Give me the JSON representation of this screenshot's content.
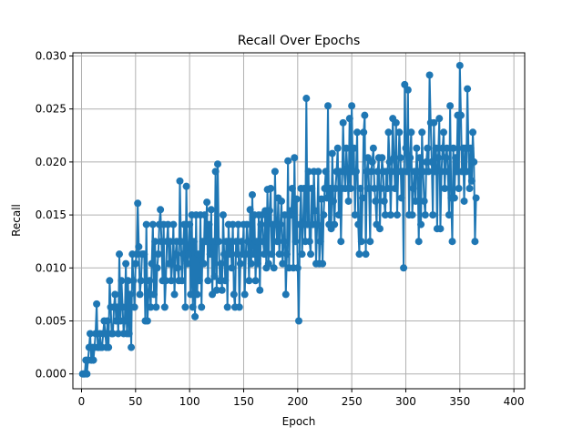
{
  "chart_data": {
    "type": "line",
    "title": "Recall Over Epochs",
    "xlabel": "Epoch",
    "ylabel": "Recall",
    "xlim": [
      -8,
      410
    ],
    "ylim": [
      -0.0014,
      0.0303
    ],
    "xticks": [
      0,
      50,
      100,
      150,
      200,
      250,
      300,
      350,
      400
    ],
    "xtick_labels": [
      "0",
      "50",
      "100",
      "150",
      "200",
      "250",
      "300",
      "350",
      "400"
    ],
    "yticks": [
      0.0,
      0.005,
      0.01,
      0.015,
      0.02,
      0.025,
      0.03
    ],
    "ytick_labels": [
      "0.000",
      "0.005",
      "0.010",
      "0.015",
      "0.020",
      "0.025",
      "0.030"
    ],
    "grid": true,
    "legend": "none",
    "marker": "circle",
    "color": "#1f77b4",
    "series": [
      {
        "x_start": 1,
        "x_step": 1,
        "values": [
          0.0,
          0.0,
          0.0,
          0.0013,
          0.0,
          0.0013,
          0.0025,
          0.0038,
          0.0013,
          0.0025,
          0.0013,
          0.0025,
          0.0038,
          0.0066,
          0.0025,
          0.0025,
          0.0038,
          0.0025,
          0.0025,
          0.0038,
          0.005,
          0.0038,
          0.0025,
          0.005,
          0.0025,
          0.0088,
          0.0063,
          0.0038,
          0.0038,
          0.0063,
          0.0075,
          0.005,
          0.0063,
          0.0038,
          0.0113,
          0.005,
          0.0088,
          0.0063,
          0.0038,
          0.005,
          0.0104,
          0.0038,
          0.0088,
          0.0038,
          0.0075,
          0.0025,
          0.0113,
          0.0088,
          0.0063,
          0.0104,
          0.0113,
          0.0161,
          0.012,
          0.0075,
          0.0088,
          0.0113,
          0.0113,
          0.0113,
          0.005,
          0.0141,
          0.005,
          0.0075,
          0.0088,
          0.0063,
          0.0104,
          0.0141,
          0.0075,
          0.0125,
          0.0063,
          0.01,
          0.0113,
          0.0141,
          0.0155,
          0.0125,
          0.0088,
          0.0141,
          0.0063,
          0.0088,
          0.0125,
          0.0141,
          0.0104,
          0.0125,
          0.0088,
          0.0104,
          0.0141,
          0.0075,
          0.0113,
          0.0125,
          0.01,
          0.0088,
          0.0182,
          0.0125,
          0.0088,
          0.0113,
          0.0141,
          0.0063,
          0.0177,
          0.0104,
          0.0113,
          0.0141,
          0.0075,
          0.015,
          0.0063,
          0.0125,
          0.0054,
          0.015,
          0.0075,
          0.0113,
          0.0088,
          0.015,
          0.0063,
          0.0125,
          0.0104,
          0.015,
          0.0125,
          0.0162,
          0.0088,
          0.0141,
          0.0113,
          0.0155,
          0.0075,
          0.0125,
          0.0092,
          0.0191,
          0.0079,
          0.0198,
          0.0125,
          0.0088,
          0.0104,
          0.0079,
          0.015,
          0.0113,
          0.0088,
          0.0125,
          0.0063,
          0.0141,
          0.0113,
          0.0125,
          0.01,
          0.0141,
          0.0075,
          0.0063,
          0.0125,
          0.0113,
          0.0141,
          0.0063,
          0.0104,
          0.0125,
          0.0113,
          0.0141,
          0.0075,
          0.0113,
          0.0141,
          0.0125,
          0.0088,
          0.0155,
          0.0104,
          0.0169,
          0.0113,
          0.015,
          0.0088,
          0.0125,
          0.0104,
          0.015,
          0.0079,
          0.0141,
          0.015,
          0.0125,
          0.0113,
          0.0154,
          0.01,
          0.0174,
          0.0104,
          0.0154,
          0.0175,
          0.0113,
          0.0141,
          0.01,
          0.0191,
          0.0141,
          0.0125,
          0.0166,
          0.0113,
          0.0141,
          0.0163,
          0.0104,
          0.0125,
          0.015,
          0.0075,
          0.0113,
          0.0201,
          0.01,
          0.0154,
          0.015,
          0.0175,
          0.01,
          0.0204,
          0.0125,
          0.0165,
          0.01,
          0.005,
          0.0141,
          0.0175,
          0.0113,
          0.0141,
          0.0175,
          0.0125,
          0.026,
          0.0141,
          0.0191,
          0.0125,
          0.0113,
          0.0175,
          0.0141,
          0.0191,
          0.0154,
          0.0104,
          0.0141,
          0.0191,
          0.0104,
          0.0125,
          0.0165,
          0.0104,
          0.015,
          0.0175,
          0.0191,
          0.0166,
          0.0253,
          0.0141,
          0.0175,
          0.0137,
          0.0208,
          0.0163,
          0.0141,
          0.0175,
          0.0191,
          0.0213,
          0.015,
          0.0191,
          0.0125,
          0.0175,
          0.0237,
          0.0191,
          0.0175,
          0.0213,
          0.0191,
          0.0163,
          0.0241,
          0.0175,
          0.0253,
          0.0191,
          0.0213,
          0.015,
          0.0191,
          0.0228,
          0.0141,
          0.0113,
          0.0175,
          0.0125,
          0.0166,
          0.0228,
          0.0244,
          0.0113,
          0.0191,
          0.0204,
          0.0175,
          0.0125,
          0.0191,
          0.02,
          0.0213,
          0.0175,
          0.0163,
          0.0141,
          0.0191,
          0.0204,
          0.0137,
          0.0175,
          0.0204,
          0.0191,
          0.0163,
          0.015,
          0.0191,
          0.0175,
          0.0228,
          0.02,
          0.015,
          0.0191,
          0.0241,
          0.0204,
          0.0175,
          0.0237,
          0.015,
          0.0191,
          0.0228,
          0.0204,
          0.0166,
          0.0191,
          0.01,
          0.0273,
          0.0213,
          0.0191,
          0.0268,
          0.015,
          0.0204,
          0.0228,
          0.015,
          0.0175,
          0.0191,
          0.0163,
          0.0213,
          0.0191,
          0.0125,
          0.0204,
          0.0141,
          0.0228,
          0.0191,
          0.0163,
          0.015,
          0.02,
          0.0213,
          0.0191,
          0.0282,
          0.0237,
          0.02,
          0.015,
          0.0237,
          0.0191,
          0.0213,
          0.0137,
          0.0204,
          0.0241,
          0.0137,
          0.0191,
          0.0213,
          0.0228,
          0.0175,
          0.0204,
          0.0213,
          0.0191,
          0.015,
          0.0253,
          0.0166,
          0.0125,
          0.0213,
          0.0166,
          0.0204,
          0.0191,
          0.0244,
          0.0175,
          0.0291,
          0.0244,
          0.0191,
          0.0213,
          0.0163,
          0.0213,
          0.0191,
          0.0269,
          0.0213,
          0.0175,
          0.0213,
          0.0182,
          0.0228,
          0.02,
          0.0125,
          0.0166
        ]
      }
    ]
  }
}
